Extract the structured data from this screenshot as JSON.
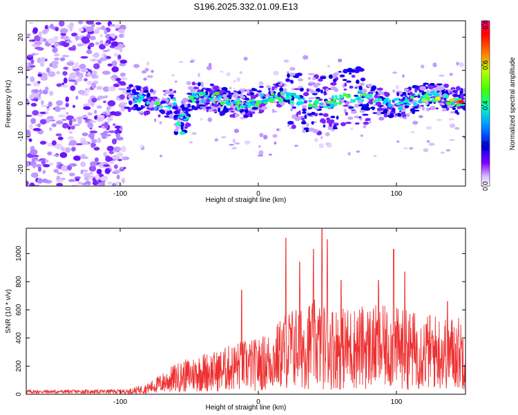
{
  "title": "S196.2025.332.01.09.E13",
  "chart_data": [
    {
      "type": "heatmap",
      "xlabel": "Height of straight line (km)",
      "ylabel": "Frequency (Hz)",
      "xlim": [
        -168,
        150
      ],
      "ylim": [
        -25,
        25
      ],
      "x_ticks": [
        -100,
        0,
        100
      ],
      "y_ticks": [
        -20,
        -10,
        0,
        10,
        20
      ],
      "colorbar": {
        "label": "Normalized spectral amplitude",
        "range": [
          0.0,
          0.82
        ],
        "ticks": [
          "0.0",
          "0.2",
          "0.4",
          "0.6",
          "0.8"
        ],
        "tick_values": [
          0.0,
          0.2,
          0.4,
          0.6,
          0.8
        ],
        "colors": [
          "#ffffff",
          "#e0c6ff",
          "#7a00ff",
          "#0000ff",
          "#00c8ff",
          "#00ff80",
          "#80ff00",
          "#ffff00",
          "#ff8000",
          "#ff0000",
          "#ff0090"
        ]
      }
    },
    {
      "type": "line",
      "xlabel": "Height of straight line (km)",
      "ylabel": "SNR (10 * v/v)",
      "xlim": [
        -168,
        150
      ],
      "ylim": [
        0,
        1180
      ],
      "x_ticks": [
        -100,
        0,
        100
      ],
      "y_ticks": [
        0,
        200,
        400,
        600,
        800,
        1000
      ],
      "line_color": "#ee3030",
      "envelope": [
        {
          "x": -168,
          "y": 30
        },
        {
          "x": -120,
          "y": 30
        },
        {
          "x": -95,
          "y": 35
        },
        {
          "x": -80,
          "y": 80
        },
        {
          "x": -70,
          "y": 150
        },
        {
          "x": -60,
          "y": 220
        },
        {
          "x": -50,
          "y": 260
        },
        {
          "x": -40,
          "y": 300
        },
        {
          "x": -30,
          "y": 310
        },
        {
          "x": -15,
          "y": 380
        },
        {
          "x": 0,
          "y": 400
        },
        {
          "x": 10,
          "y": 460
        },
        {
          "x": 20,
          "y": 600
        },
        {
          "x": 30,
          "y": 650
        },
        {
          "x": 40,
          "y": 680
        },
        {
          "x": 50,
          "y": 650
        },
        {
          "x": 60,
          "y": 620
        },
        {
          "x": 80,
          "y": 640
        },
        {
          "x": 100,
          "y": 620
        },
        {
          "x": 120,
          "y": 580
        },
        {
          "x": 150,
          "y": 560
        }
      ],
      "peaks": [
        {
          "x": -12,
          "y": 740
        },
        {
          "x": 20,
          "y": 1110
        },
        {
          "x": 30,
          "y": 940
        },
        {
          "x": 40,
          "y": 1030
        },
        {
          "x": 46,
          "y": 1180
        },
        {
          "x": 50,
          "y": 1100
        },
        {
          "x": 60,
          "y": 810
        },
        {
          "x": 87,
          "y": 810
        },
        {
          "x": 98,
          "y": 1030
        },
        {
          "x": 106,
          "y": 870
        },
        {
          "x": 137,
          "y": 660
        }
      ]
    }
  ]
}
